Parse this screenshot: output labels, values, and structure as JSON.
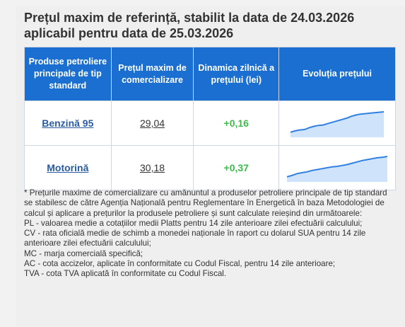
{
  "title_line1": "Prețul maxim de referință, stabilit la data de 24.03.2026",
  "title_line2": "aplicabil pentru data de 25.03.2026",
  "table": {
    "headers": [
      "Produse petroliere principale de tip standard",
      "Prețul maxim de comercializare",
      "Dinamica zilnică a prețului (lei)",
      "Evoluția prețului"
    ],
    "rows": [
      {
        "product": "Benzină 95",
        "price": "29,04",
        "delta": "+0,16",
        "trend": [
          0.1,
          0.16,
          0.2,
          0.22,
          0.3,
          0.36,
          0.4,
          0.42,
          0.48,
          0.54,
          0.6,
          0.66,
          0.72,
          0.8,
          0.86,
          0.9,
          0.92,
          0.94,
          0.96,
          0.98,
          1.0
        ]
      },
      {
        "product": "Motorină",
        "price": "30,18",
        "delta": "+0,37",
        "trend": [
          0.1,
          0.16,
          0.24,
          0.28,
          0.32,
          0.38,
          0.42,
          0.46,
          0.5,
          0.54,
          0.56,
          0.6,
          0.64,
          0.7,
          0.76,
          0.82,
          0.86,
          0.9,
          0.94,
          0.96,
          1.0
        ]
      }
    ]
  },
  "notes": [
    "* Prețurile maxime de comercializare cu amănuntul a produselor petroliere principale de tip standard se stabilesc de către Agenția Națională pentru Reglementare în Energetică în baza Metodologiei de calcul și aplicare a prețurilor la produsele petroliere și sunt calculate reieșind din următoarele:",
    "PL - valoarea medie a cotațiilor medii Platts pentru 14 zile anterioare zilei efectuării calculului;",
    "CV - rata oficială medie de schimb a monedei naționale în raport cu dolarul SUA pentru 14 zile anterioare zilei efectuării calculului;",
    "MC - marja comercială specifică;",
    "AC - cota accizelor, aplicate în conformitate cu Codul Fiscal, pentru 14 zile anterioare;",
    "TVA - cota TVA aplicată în conformitate cu Codul Fiscal."
  ],
  "colors": {
    "header_bg": "#1a6fd0",
    "link": "#2a5aa0",
    "positive": "#3dbb4a",
    "spark_line": "#2f80e0",
    "spark_fill": "#cfe4fb"
  }
}
